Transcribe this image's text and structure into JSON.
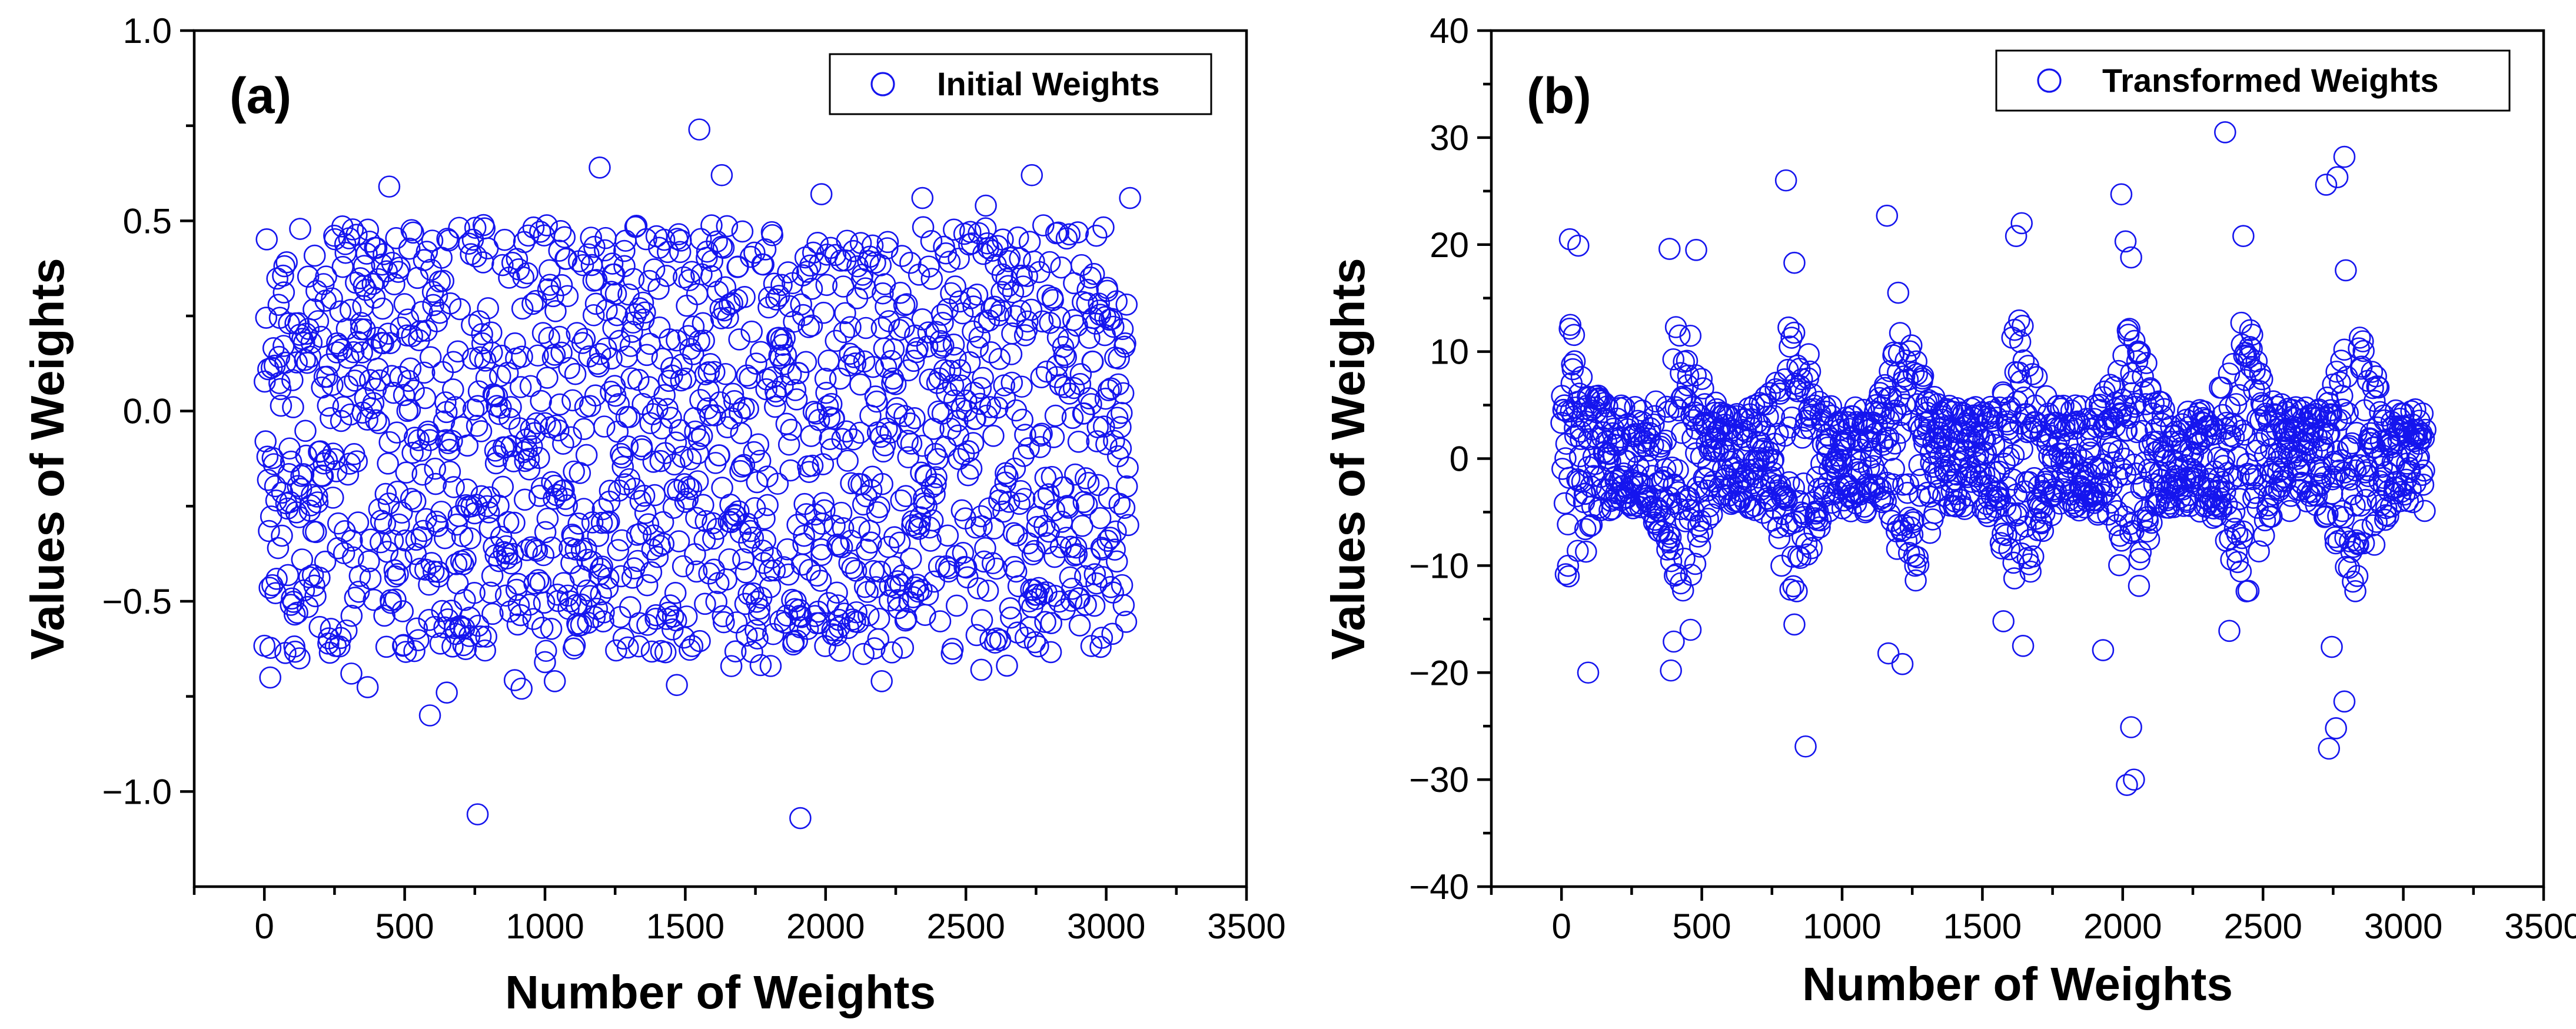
{
  "chart_data": [
    {
      "type": "scatter",
      "panel_label": "(a)",
      "title": "",
      "xlabel": "Number of Weights",
      "ylabel": "Values of Weights",
      "xlim": [
        -250,
        3500
      ],
      "ylim": [
        -1.25,
        1.0
      ],
      "xticks": [
        0,
        500,
        1000,
        1500,
        2000,
        2500,
        3000,
        3500
      ],
      "yticks": [
        -1.0,
        -0.5,
        0.0,
        0.5,
        1.0
      ],
      "xtick_labels": [
        "0",
        "500",
        "1000",
        "1500",
        "2000",
        "2500",
        "3000",
        "3500"
      ],
      "ytick_labels": [
        "−1.0",
        "−0.5",
        "0.0",
        "0.5",
        "1.0"
      ],
      "legend": {
        "label": "Initial Weights",
        "position": "top-right",
        "marker": "open-circle"
      },
      "marker_color": "#1515ee",
      "series": [
        {
          "name": "Initial Weights",
          "n_points": 3080,
          "distribution": "dense band between about -0.65 and 0.5, roughly uniform",
          "outliers": [
            [
              760,
              -1.06
            ],
            [
              1910,
              -1.07
            ],
            [
              590,
              -0.8
            ],
            [
              650,
              -0.74
            ],
            [
              1550,
              0.74
            ],
            [
              1195,
              0.64
            ],
            [
              1630,
              0.62
            ],
            [
              2735,
              0.62
            ],
            [
              445,
              0.59
            ],
            [
              1985,
              0.57
            ],
            [
              3085,
              0.56
            ],
            [
              2345,
              0.56
            ],
            [
              1470,
              -0.72
            ],
            [
              2200,
              -0.71
            ],
            [
              1035,
              -0.71
            ],
            [
              310,
              -0.69
            ],
            [
              2555,
              -0.68
            ],
            [
              125,
              -0.65
            ],
            [
              1000,
              -0.66
            ],
            [
              2050,
              -0.63
            ],
            [
              2980,
              -0.62
            ]
          ]
        }
      ]
    },
    {
      "type": "scatter",
      "panel_label": "(b)",
      "title": "",
      "xlabel": "Number of Weights",
      "ylabel": "Values of Weights",
      "xlim": [
        -250,
        3500
      ],
      "ylim": [
        -40,
        40
      ],
      "xticks": [
        0,
        500,
        1000,
        1500,
        2000,
        2500,
        3000,
        3500
      ],
      "yticks": [
        -40,
        -30,
        -20,
        -10,
        0,
        10,
        20,
        30,
        40
      ],
      "xtick_labels": [
        "0",
        "500",
        "1000",
        "1500",
        "2000",
        "2500",
        "3000",
        "3500"
      ],
      "ytick_labels": [
        "−40",
        "−30",
        "−20",
        "−10",
        "0",
        "10",
        "20",
        "30",
        "40"
      ],
      "legend": {
        "label": "Transformed Weights",
        "position": "top-right",
        "marker": "open-circle"
      },
      "marker_color": "#1515ee",
      "series": [
        {
          "name": "Transformed Weights",
          "n_points": 3080,
          "distribution": "dense band between about -8 and 8 with periodic bursts of larger magnitude",
          "outliers": [
            [
              2365,
              30.5
            ],
            [
              2790,
              28.2
            ],
            [
              2765,
              26.3
            ],
            [
              2725,
              25.6
            ],
            [
              800,
              26.0
            ],
            [
              1995,
              24.7
            ],
            [
              1160,
              22.7
            ],
            [
              1640,
              22.0
            ],
            [
              2010,
              20.3
            ],
            [
              2430,
              20.8
            ],
            [
              30,
              20.5
            ],
            [
              60,
              19.9
            ],
            [
              385,
              19.6
            ],
            [
              480,
              19.5
            ],
            [
              830,
              18.3
            ],
            [
              1200,
              15.5
            ],
            [
              2795,
              17.6
            ],
            [
              2030,
              18.8
            ],
            [
              1620,
              20.8
            ],
            [
              2015,
              -30.5
            ],
            [
              2040,
              -30.0
            ],
            [
              2735,
              -27.1
            ],
            [
              870,
              -26.9
            ],
            [
              2030,
              -25.1
            ],
            [
              2760,
              -25.2
            ],
            [
              2790,
              -22.7
            ],
            [
              95,
              -20.0
            ],
            [
              390,
              -19.8
            ],
            [
              1215,
              -19.2
            ],
            [
              1165,
              -18.2
            ],
            [
              1930,
              -17.9
            ],
            [
              2745,
              -17.6
            ],
            [
              1645,
              -17.5
            ],
            [
              400,
              -17.1
            ],
            [
              460,
              -16.0
            ],
            [
              2380,
              -16.1
            ],
            [
              1575,
              -15.2
            ],
            [
              830,
              -15.5
            ]
          ]
        }
      ]
    }
  ]
}
